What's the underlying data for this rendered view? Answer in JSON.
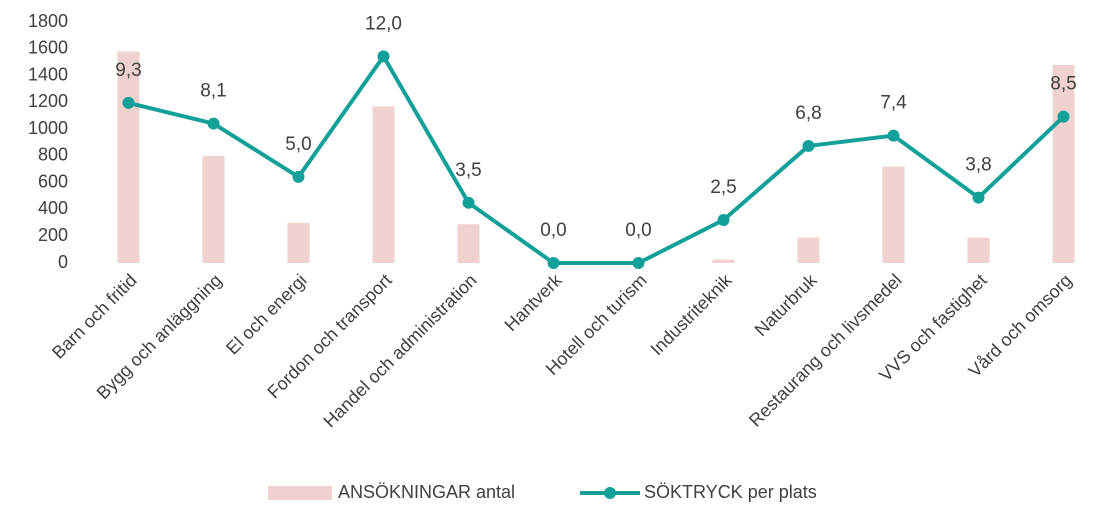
{
  "chart_data": {
    "type": "bar+line",
    "categories": [
      "Barn och fritid",
      "Bygg och anläggning",
      "El och energi",
      "Fordon och transport",
      "Handel och administration",
      "Hantverk",
      "Hotell och turism",
      "Industriteknik",
      "Naturbruk",
      "Restaurang och livsmedel",
      "VVS och fastighet",
      "Vård och omsorg"
    ],
    "series": [
      {
        "name": "ANSÖKNINGAR antal",
        "type": "bar",
        "color": "#efd1cf",
        "values": [
          1580,
          800,
          300,
          1170,
          290,
          0,
          0,
          25,
          190,
          720,
          190,
          1480
        ]
      },
      {
        "name": "SÖKTRYCK per plats",
        "type": "line",
        "axis": "y2",
        "color": "#12a098",
        "values": [
          9.3,
          8.1,
          5.0,
          12.0,
          3.5,
          0.0,
          0.0,
          2.5,
          6.8,
          7.4,
          3.8,
          8.5
        ],
        "value_labels": [
          "9,3",
          "8,1",
          "5,0",
          "12,0",
          "3,5",
          "0,0",
          "0,0",
          "2,5",
          "6,8",
          "7,4",
          "3,8",
          "8,5"
        ]
      }
    ],
    "ylim": [
      0,
      1800
    ],
    "yticks": [
      0,
      200,
      400,
      600,
      800,
      1000,
      1200,
      1400,
      1600,
      1800
    ],
    "y2lim": [
      0,
      14
    ],
    "legend": "bottom"
  }
}
